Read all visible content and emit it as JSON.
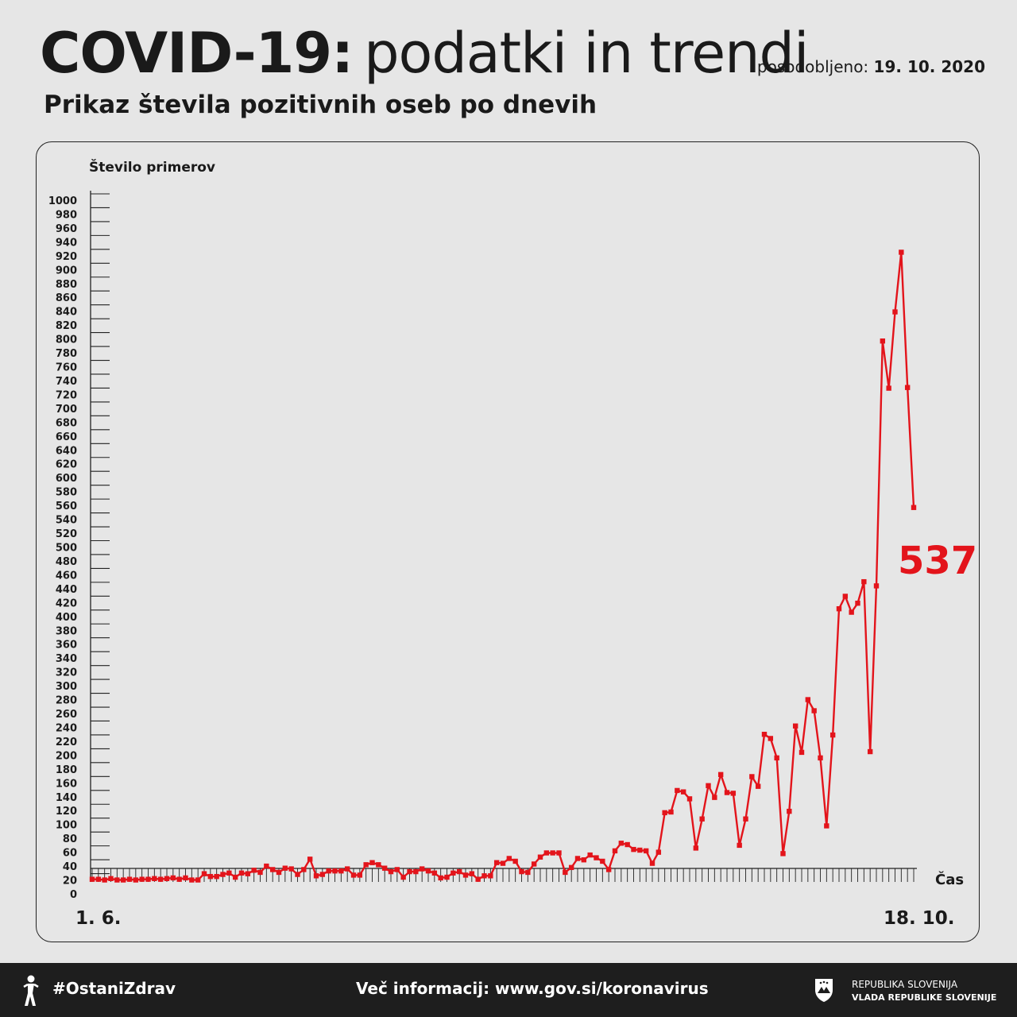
{
  "header": {
    "title_bold": "COVID-19:",
    "title_light": "podatki in trendi",
    "updated_label": "posodobljeno:",
    "updated_date": "19. 10. 2020",
    "subtitle": "Prikaz števila pozitivnih oseb po dnevih"
  },
  "footer": {
    "hashtag": "#OstaniZdrav",
    "info": "Več informacij: www.gov.si/koronavirus",
    "gov_line1": "REPUBLIKA SLOVENIJA",
    "gov_line2": "VLADA REPUBLIKE SLOVENIJE",
    "person_icon": "person-icon",
    "crest_icon": "coat-of-arms-icon"
  },
  "chart_data": {
    "type": "line",
    "title": "Prikaz števila pozitivnih oseb po dnevih",
    "ylabel": "Število primerov",
    "xlabel": "Čas",
    "x_start_label": "1. 6.",
    "x_end_label": "18. 10.",
    "ylim": [
      0,
      1000
    ],
    "ytick_step": 20,
    "highlight_value": "537",
    "line_color": "#e3141b",
    "series": [
      {
        "values": [
          1,
          1,
          0,
          2,
          0,
          0,
          1,
          0,
          1,
          1,
          2,
          1,
          2,
          3,
          1,
          3,
          0,
          0,
          9,
          5,
          5,
          8,
          10,
          4,
          10,
          9,
          14,
          11,
          20,
          15,
          11,
          17,
          16,
          8,
          15,
          30,
          6,
          8,
          13,
          13,
          13,
          16,
          7,
          7,
          22,
          25,
          22,
          17,
          12,
          15,
          4,
          12,
          12,
          16,
          13,
          10,
          3,
          4,
          10,
          12,
          7,
          9,
          1,
          6,
          6,
          25,
          24,
          31,
          27,
          12,
          11,
          23,
          33,
          39,
          39,
          39,
          11,
          18,
          31,
          29,
          36,
          32,
          27,
          15,
          42,
          53,
          51,
          44,
          43,
          42,
          24,
          40,
          97,
          98,
          129,
          127,
          117,
          46,
          88,
          136,
          119,
          152,
          126,
          125,
          50,
          88,
          149,
          135,
          210,
          204,
          176,
          38,
          99,
          222,
          184,
          260,
          244,
          176,
          78,
          209,
          391,
          409,
          386,
          399,
          430,
          185,
          424,
          777,
          709,
          819,
          905,
          710,
          537
        ]
      }
    ]
  }
}
